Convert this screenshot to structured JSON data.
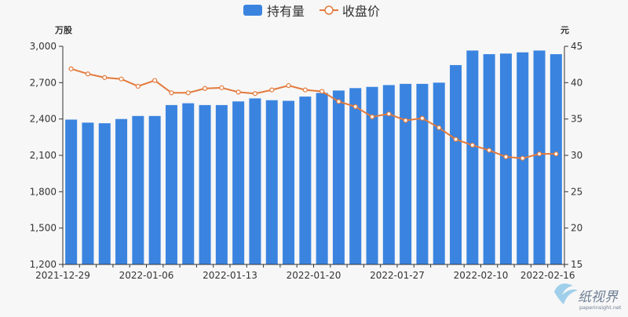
{
  "chart_data": {
    "type": "bar",
    "legend": {
      "placement": "top-center"
    },
    "grid": false,
    "x_tick_labels": [
      "2021-12-29",
      "2022-01-06",
      "2022-01-13",
      "2022-01-20",
      "2022-01-27",
      "2022-02-10",
      "2022-02-16"
    ],
    "y_left": {
      "unit": "万股",
      "range": [
        1200,
        3000
      ],
      "ticks": [
        "1,200",
        "1,500",
        "1,800",
        "2,100",
        "2,400",
        "2,700",
        "3,000"
      ]
    },
    "y_right": {
      "unit": "元",
      "range": [
        15,
        45
      ],
      "ticks": [
        "15",
        "20",
        "25",
        "30",
        "35",
        "40",
        "45"
      ]
    },
    "series": [
      {
        "name": "持有量",
        "type": "bar",
        "axis": "left",
        "color": "#3a84e0",
        "values": [
          2395,
          2370,
          2365,
          2400,
          2425,
          2425,
          2515,
          2530,
          2515,
          2515,
          2545,
          2570,
          2555,
          2550,
          2585,
          2615,
          2635,
          2655,
          2665,
          2680,
          2690,
          2690,
          2700,
          2845,
          2965,
          2935,
          2940,
          2950,
          2965,
          2935
        ]
      },
      {
        "name": "收盘价",
        "type": "line",
        "axis": "right",
        "color": "#e27a3c",
        "values": [
          41.9,
          41.2,
          40.7,
          40.5,
          39.5,
          40.3,
          38.6,
          38.6,
          39.2,
          39.3,
          38.7,
          38.5,
          39.0,
          39.6,
          39.0,
          38.8,
          37.4,
          36.7,
          35.3,
          35.7,
          34.8,
          35.1,
          33.8,
          32.2,
          31.4,
          30.7,
          29.8,
          29.6,
          30.2,
          30.2
        ]
      }
    ]
  },
  "watermark": {
    "text": "纸视界",
    "sub": "paperinsight.net"
  }
}
